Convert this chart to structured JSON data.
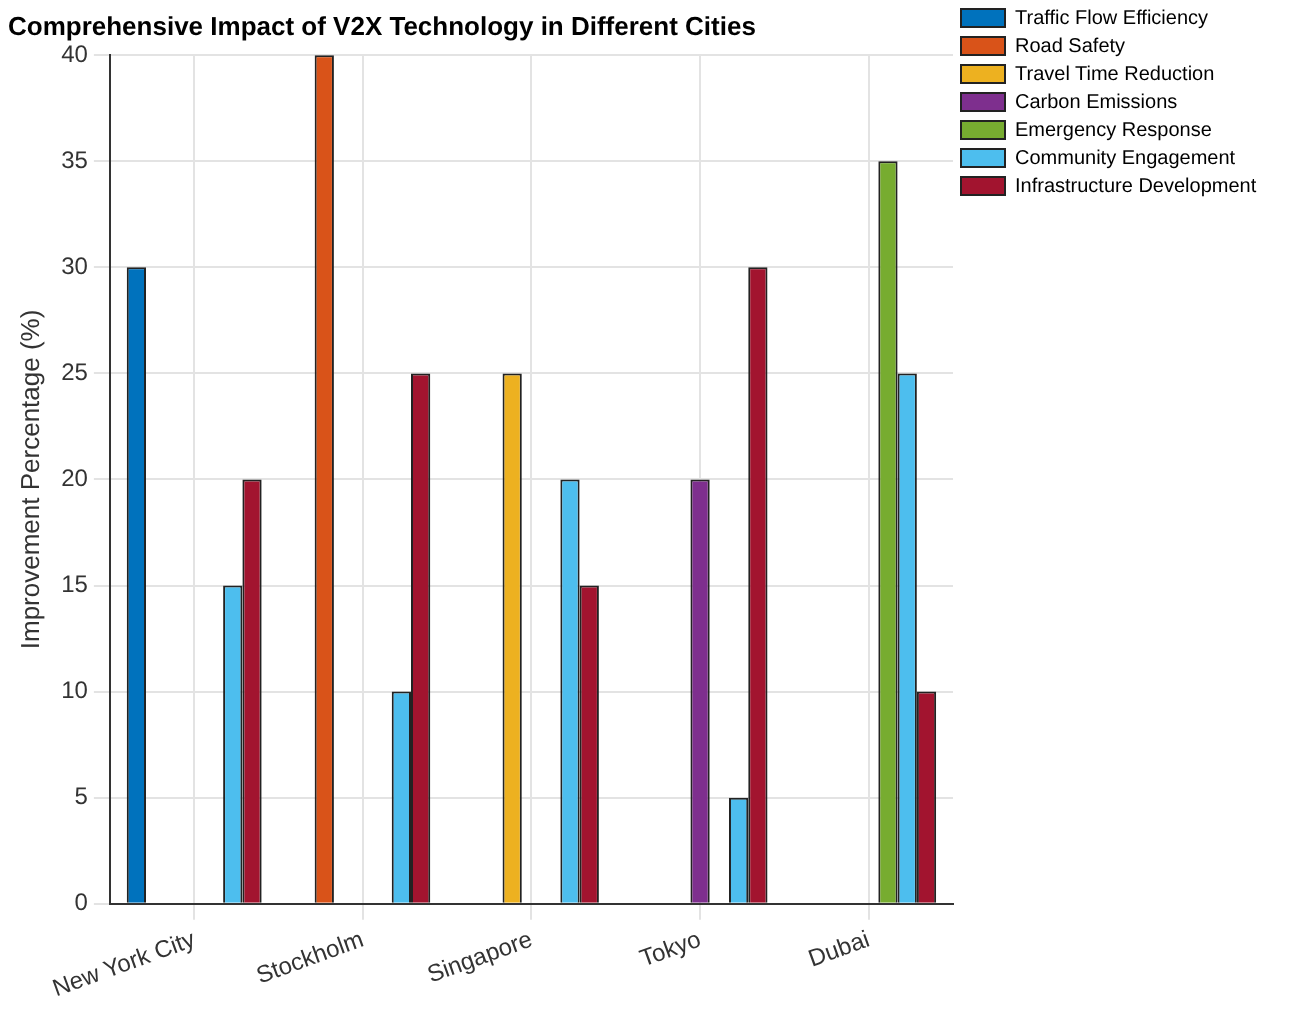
{
  "chart_data": {
    "type": "bar",
    "title": "Comprehensive Impact of V2X Technology in Different Cities",
    "ylabel": "Improvement Percentage (%)",
    "categories": [
      "New York City",
      "Stockholm",
      "Singapore",
      "Tokyo",
      "Dubai"
    ],
    "series": [
      {
        "name": "Traffic Flow Efficiency",
        "color": "#0072bd",
        "values": [
          30,
          0,
          0,
          0,
          0
        ]
      },
      {
        "name": "Road Safety",
        "color": "#d95319",
        "values": [
          0,
          40,
          0,
          0,
          0
        ]
      },
      {
        "name": "Travel Time Reduction",
        "color": "#edb120",
        "values": [
          0,
          0,
          25,
          0,
          0
        ]
      },
      {
        "name": "Carbon Emissions",
        "color": "#7e2f8e",
        "values": [
          0,
          0,
          0,
          20,
          0
        ]
      },
      {
        "name": "Emergency Response",
        "color": "#77ac30",
        "values": [
          0,
          0,
          0,
          0,
          35
        ]
      },
      {
        "name": "Community Engagement",
        "color": "#4dbeee",
        "values": [
          15,
          10,
          20,
          5,
          25
        ]
      },
      {
        "name": "Infrastructure Development",
        "color": "#a2142f",
        "values": [
          20,
          25,
          15,
          30,
          10
        ]
      }
    ],
    "ylim": [
      0,
      40
    ],
    "yticks": [
      0,
      5,
      10,
      15,
      20,
      25,
      30,
      35,
      40
    ],
    "grid": true,
    "legend": "top right"
  }
}
